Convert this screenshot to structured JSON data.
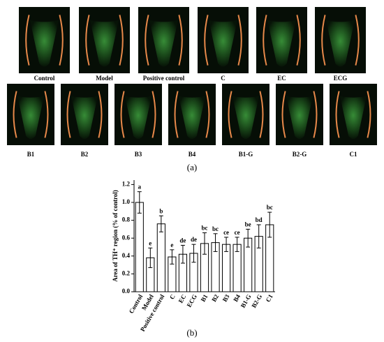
{
  "panel_a": {
    "label": "(a)",
    "images": [
      "Control",
      "Model",
      "Positive control",
      "C",
      "EC",
      "ECG",
      "B1",
      "B2",
      "B3",
      "B4",
      "B1-G",
      "B2-G",
      "C1"
    ]
  },
  "chart_data": {
    "type": "bar",
    "label": "(b)",
    "y_label": "Area of TH⁺ region (% of control)",
    "categories": [
      "Control",
      "Model",
      "Positive control",
      "C",
      "EC",
      "ECG",
      "B1",
      "B2",
      "B3",
      "B4",
      "B1-G",
      "B2-G",
      "C1"
    ],
    "values": [
      1.0,
      0.38,
      0.76,
      0.39,
      0.42,
      0.43,
      0.54,
      0.55,
      0.53,
      0.53,
      0.6,
      0.62,
      0.75
    ],
    "errors": [
      0.12,
      0.11,
      0.09,
      0.08,
      0.1,
      0.1,
      0.12,
      0.1,
      0.08,
      0.08,
      0.1,
      0.13,
      0.14
    ],
    "letters": [
      "a",
      "e",
      "b",
      "e",
      "de",
      "de",
      "bc",
      "bc",
      "ce",
      "ce",
      "be",
      "bd",
      "bc"
    ],
    "color": "#ffffff",
    "edge_color": "#000000",
    "ylim": [
      0,
      1.25
    ],
    "yticks": [
      {
        "value": 0,
        "label": "0.0"
      },
      0.2,
      0.4,
      0.6,
      0.8,
      {
        "value": 1,
        "label": "1.0"
      },
      1.2
    ]
  }
}
